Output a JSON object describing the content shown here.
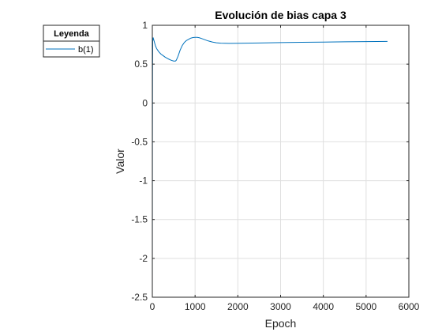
{
  "chart_data": {
    "type": "line",
    "title": "Evolución de bias capa 3",
    "xlabel": "Epoch",
    "ylabel": "Valor",
    "xlim": [
      0,
      6000
    ],
    "ylim": [
      -2.5,
      1
    ],
    "x_ticks": [
      0,
      1000,
      2000,
      3000,
      4000,
      5000,
      6000
    ],
    "y_ticks": [
      -2.5,
      -2,
      -1.5,
      -1,
      -0.5,
      0,
      0.5,
      1
    ],
    "x_tick_labels": [
      "0",
      "1000",
      "2000",
      "3000",
      "4000",
      "5000",
      "6000"
    ],
    "y_tick_labels": [
      "-2.5",
      "-2",
      "-1.5",
      "-1",
      "-0.5",
      "0",
      "0.5",
      "1"
    ],
    "grid": true,
    "legend": {
      "title": "Leyenda",
      "placement": "outside-top-left"
    },
    "series": [
      {
        "name": "b(1)",
        "color": "#0072BD",
        "x": [
          0,
          2,
          5,
          10,
          20,
          40,
          70,
          100,
          150,
          200,
          250,
          300,
          350,
          400,
          450,
          500,
          540,
          560,
          600,
          650,
          700,
          750,
          800,
          850,
          900,
          950,
          1000,
          1050,
          1100,
          1150,
          1200,
          1300,
          1400,
          1500,
          1600,
          1700,
          1800,
          2000,
          2500,
          3000,
          3500,
          4000,
          4500,
          5000,
          5500
        ],
        "y": [
          -2.5,
          -0.5,
          0.4,
          0.8,
          0.84,
          0.8,
          0.74,
          0.7,
          0.66,
          0.63,
          0.61,
          0.59,
          0.575,
          0.56,
          0.548,
          0.54,
          0.54,
          0.55,
          0.6,
          0.68,
          0.74,
          0.78,
          0.805,
          0.82,
          0.835,
          0.842,
          0.845,
          0.845,
          0.84,
          0.83,
          0.82,
          0.8,
          0.785,
          0.775,
          0.77,
          0.768,
          0.767,
          0.768,
          0.772,
          0.778,
          0.781,
          0.784,
          0.787,
          0.79,
          0.793
        ]
      }
    ]
  }
}
